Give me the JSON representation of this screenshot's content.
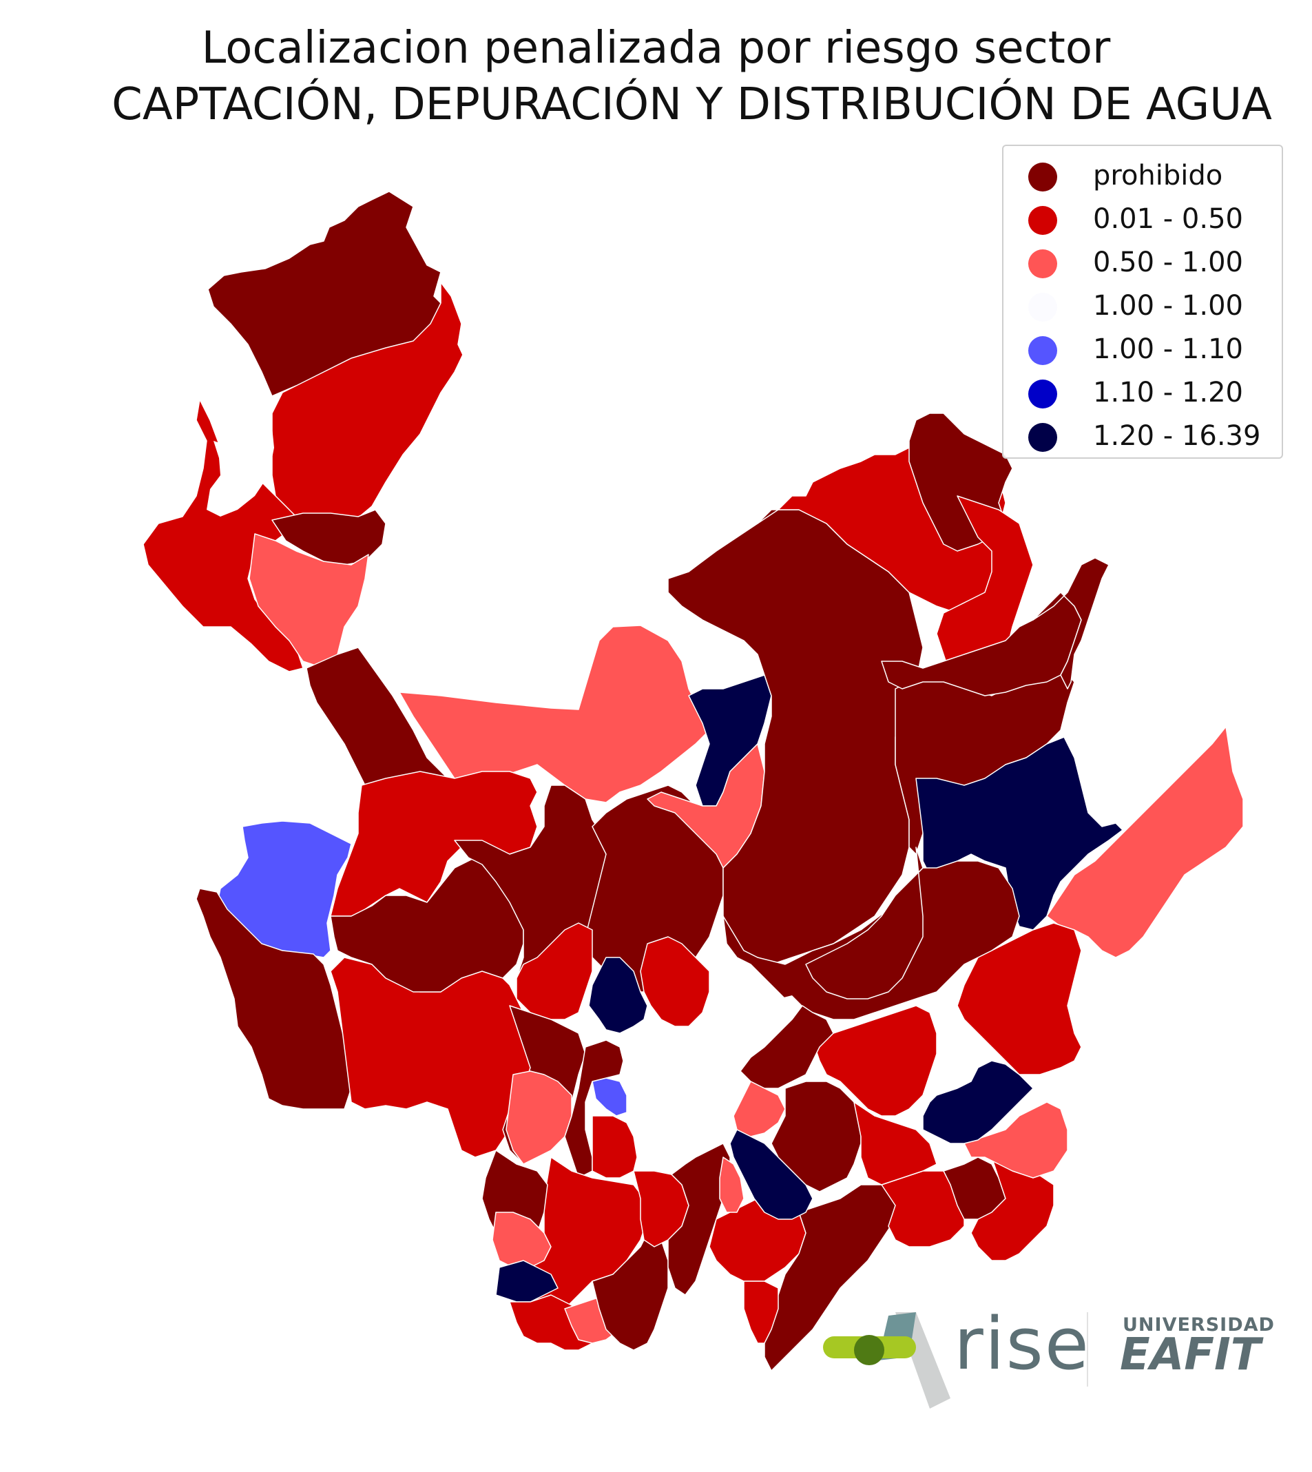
{
  "title": {
    "line1": "Localizacion penalizada por riesgo sector",
    "line2": "CAPTACIÓN, DEPURACIÓN Y DISTRIBUCIÓN DE AGUA"
  },
  "legend": {
    "items": [
      {
        "label": "prohibido",
        "color": "#800000"
      },
      {
        "label": "0.01 - 0.50",
        "color": "#d20000"
      },
      {
        "label": "0.50 - 1.00",
        "color": "#ff5555"
      },
      {
        "label": "1.00 - 1.00",
        "color": "#fbfbff"
      },
      {
        "label": "1.00 - 1.10",
        "color": "#5555ff"
      },
      {
        "label": "1.10 - 1.20",
        "color": "#0000c8"
      },
      {
        "label": "1.20 - 16.39",
        "color": "#000048"
      }
    ]
  },
  "colors": {
    "prohibido": "#800000",
    "low": "#d20000",
    "mid": "#ff5555",
    "neutral": "#fbfbff",
    "blue_light": "#5555ff",
    "blue_mid": "#0000c8",
    "blue_dark": "#000048",
    "background": "#ffffff"
  },
  "logos": {
    "rise": "rise",
    "eafit_top": "UNIVERSIDAD",
    "eafit_main": "EAFIT"
  }
}
